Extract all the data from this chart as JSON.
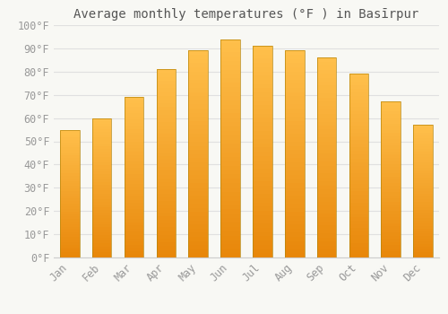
{
  "title": "Average monthly temperatures (°F ) in Basīrpur",
  "months": [
    "Jan",
    "Feb",
    "Mar",
    "Apr",
    "May",
    "Jun",
    "Jul",
    "Aug",
    "Sep",
    "Oct",
    "Nov",
    "Dec"
  ],
  "values": [
    55,
    60,
    69,
    81,
    89,
    94,
    91,
    89,
    86,
    79,
    67,
    57
  ],
  "bar_color_top": "#FFC04C",
  "bar_color_bottom": "#E8870A",
  "bar_edge_color": "#B8860B",
  "ylim": [
    0,
    100
  ],
  "yticks": [
    0,
    10,
    20,
    30,
    40,
    50,
    60,
    70,
    80,
    90,
    100
  ],
  "ytick_labels": [
    "0°F",
    "10°F",
    "20°F",
    "30°F",
    "40°F",
    "50°F",
    "60°F",
    "70°F",
    "80°F",
    "90°F",
    "100°F"
  ],
  "background_color": "#f8f8f4",
  "plot_bg_color": "#f8f8f4",
  "grid_color": "#e0e0e0",
  "title_fontsize": 10,
  "tick_fontsize": 8.5,
  "tick_color": "#999999",
  "font_family": "monospace",
  "bar_width": 0.6
}
